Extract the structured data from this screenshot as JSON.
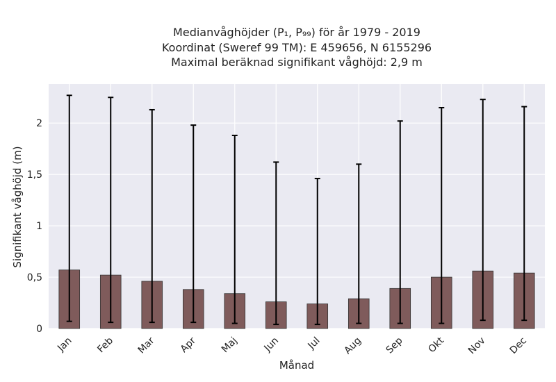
{
  "chart_data": {
    "type": "bar",
    "title_lines": [
      "Medianvåghöjder (P₁, P₉₉) för år 1979 - 2019",
      "Koordinat (Sweref 99 TM): E 459656, N 6155296",
      "Maximal beräknad signifikant våghöjd: 2,9 m"
    ],
    "xlabel": "Månad",
    "ylabel": "Signifikant våghöjd (m)",
    "categories": [
      "Jan",
      "Feb",
      "Mar",
      "Apr",
      "Maj",
      "Jun",
      "Jul",
      "Aug",
      "Sep",
      "Okt",
      "Nov",
      "Dec"
    ],
    "values": [
      0.57,
      0.52,
      0.46,
      0.38,
      0.34,
      0.26,
      0.24,
      0.29,
      0.39,
      0.5,
      0.56,
      0.54
    ],
    "p1": [
      0.07,
      0.06,
      0.06,
      0.06,
      0.05,
      0.04,
      0.04,
      0.05,
      0.05,
      0.05,
      0.08,
      0.08
    ],
    "p99": [
      2.27,
      2.25,
      2.13,
      1.98,
      1.88,
      1.62,
      1.46,
      1.6,
      2.02,
      2.15,
      2.23,
      2.16
    ],
    "ylim": [
      0,
      2.38
    ],
    "yticks": [
      0,
      0.5,
      1,
      1.5,
      2
    ],
    "ytick_labels": [
      "0",
      "0,5",
      "1",
      "1,5",
      "2"
    ],
    "grid": true,
    "bar_color": "#7f5b5b",
    "bar_edge_color": "#333333",
    "plot_background": "#eaeaf2",
    "errorbar_color": "#000000"
  }
}
